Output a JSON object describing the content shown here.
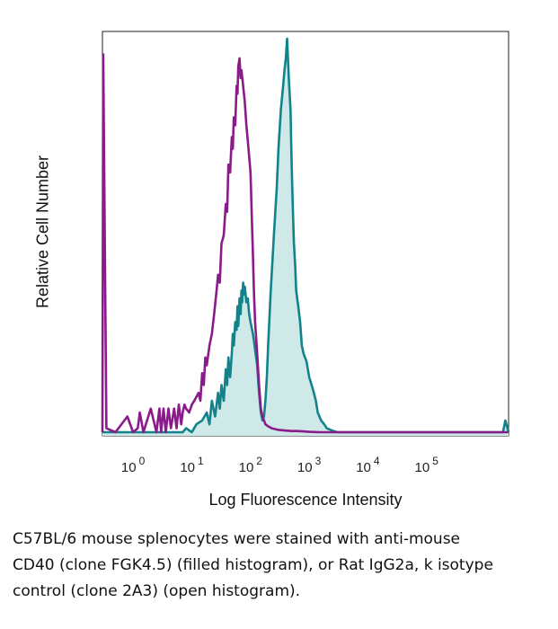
{
  "chart_data": {
    "type": "area",
    "xscale": "log",
    "xlabel": "Log Fluorescence Intensity",
    "ylabel": "Relative Cell Number",
    "xlim": [
      0.3,
      2500000
    ],
    "ylim": [
      0,
      1.0
    ],
    "xticks": [
      {
        "base": "10",
        "exp": "0",
        "value": 1
      },
      {
        "base": "10",
        "exp": "1",
        "value": 10
      },
      {
        "base": "10",
        "exp": "2",
        "value": 100
      },
      {
        "base": "10",
        "exp": "3",
        "value": 1000
      },
      {
        "base": "10",
        "exp": "4",
        "value": 10000
      },
      {
        "base": "10",
        "exp": "5",
        "value": 100000
      }
    ],
    "grid": false,
    "legend": "none",
    "series": [
      {
        "style": "filled",
        "color": "#12838a",
        "fill": "#cfe9e9",
        "x": [
          0.3,
          2,
          4,
          6,
          7,
          8,
          10,
          12,
          15,
          18,
          20,
          22,
          25,
          28,
          30,
          32,
          35,
          38,
          40,
          42,
          45,
          48,
          50,
          52,
          55,
          58,
          60,
          62,
          65,
          68,
          70,
          72,
          75,
          78,
          80,
          85,
          90,
          95,
          100,
          110,
          120,
          130,
          140,
          150,
          160,
          170,
          180,
          190,
          200,
          220,
          250,
          280,
          300,
          330,
          360,
          380,
          400,
          420,
          450,
          480,
          500,
          520,
          550,
          580,
          600,
          650,
          700,
          750,
          800,
          900,
          1000,
          1100,
          1200,
          1300,
          1400,
          1600,
          1800,
          2000,
          2400,
          3000,
          5000,
          10000,
          100000,
          400000,
          2000000,
          2200000,
          2500000
        ],
        "values": [
          0,
          0,
          0,
          0,
          0,
          0.01,
          0,
          0.02,
          0.03,
          0.05,
          0.02,
          0.08,
          0.04,
          0.1,
          0.06,
          0.12,
          0.08,
          0.16,
          0.12,
          0.19,
          0.14,
          0.2,
          0.25,
          0.22,
          0.28,
          0.26,
          0.32,
          0.27,
          0.34,
          0.3,
          0.36,
          0.33,
          0.38,
          0.35,
          0.37,
          0.33,
          0.34,
          0.3,
          0.28,
          0.25,
          0.21,
          0.17,
          0.1,
          0.05,
          0.03,
          0.04,
          0.08,
          0.14,
          0.22,
          0.35,
          0.5,
          0.62,
          0.72,
          0.82,
          0.88,
          0.92,
          0.95,
          1.0,
          0.9,
          0.82,
          0.7,
          0.6,
          0.48,
          0.42,
          0.36,
          0.32,
          0.28,
          0.22,
          0.2,
          0.18,
          0.14,
          0.12,
          0.1,
          0.08,
          0.05,
          0.03,
          0.02,
          0.01,
          0.005,
          0,
          0,
          0,
          0,
          0,
          0,
          0.03,
          0
        ]
      },
      {
        "style": "open",
        "color": "#8b1a8b",
        "x": [
          0.3,
          0.31,
          0.35,
          0.5,
          0.8,
          1.0,
          1.2,
          1.3,
          1.5,
          2.0,
          2.5,
          2.8,
          3.0,
          3.3,
          3.6,
          4.0,
          4.4,
          5.0,
          5.5,
          6.0,
          6.6,
          7.0,
          7.5,
          8.0,
          9.0,
          10,
          11,
          12,
          13,
          14,
          15,
          16,
          17,
          18,
          20,
          22,
          24,
          26,
          28,
          30,
          32,
          35,
          38,
          40,
          42,
          45,
          48,
          50,
          52,
          55,
          58,
          60,
          62,
          65,
          68,
          70,
          75,
          80,
          85,
          90,
          95,
          100,
          105,
          110,
          115,
          120,
          130,
          140,
          150,
          160,
          170,
          180,
          200,
          230,
          260,
          300,
          350,
          400,
          500,
          600,
          800,
          1000,
          1500,
          2000,
          5000,
          10000,
          2500000
        ],
        "values": [
          0,
          0.96,
          0.01,
          0,
          0.04,
          0,
          0.01,
          0.05,
          0,
          0.06,
          0,
          0.06,
          0,
          0.06,
          0,
          0.06,
          0.01,
          0.06,
          0.01,
          0.07,
          0.02,
          0.05,
          0.07,
          0.06,
          0.05,
          0.07,
          0.08,
          0.09,
          0.1,
          0.08,
          0.15,
          0.12,
          0.19,
          0.17,
          0.22,
          0.25,
          0.3,
          0.35,
          0.4,
          0.38,
          0.48,
          0.5,
          0.58,
          0.56,
          0.68,
          0.66,
          0.75,
          0.72,
          0.8,
          0.78,
          0.88,
          0.86,
          0.93,
          0.95,
          0.9,
          0.92,
          0.88,
          0.84,
          0.78,
          0.74,
          0.7,
          0.66,
          0.55,
          0.45,
          0.35,
          0.28,
          0.2,
          0.12,
          0.06,
          0.04,
          0.03,
          0.02,
          0.015,
          0.01,
          0.008,
          0.006,
          0.005,
          0.004,
          0.003,
          0.003,
          0.002,
          0.001,
          0,
          0,
          0,
          0,
          0
        ]
      }
    ]
  },
  "caption": [
    "C57BL/6 mouse splenocytes were stained with anti-mouse",
    "CD40 (clone FGK4.5) (filled histogram), or Rat IgG2a, k isotype",
    "control (clone 2A3) (open histogram)."
  ]
}
